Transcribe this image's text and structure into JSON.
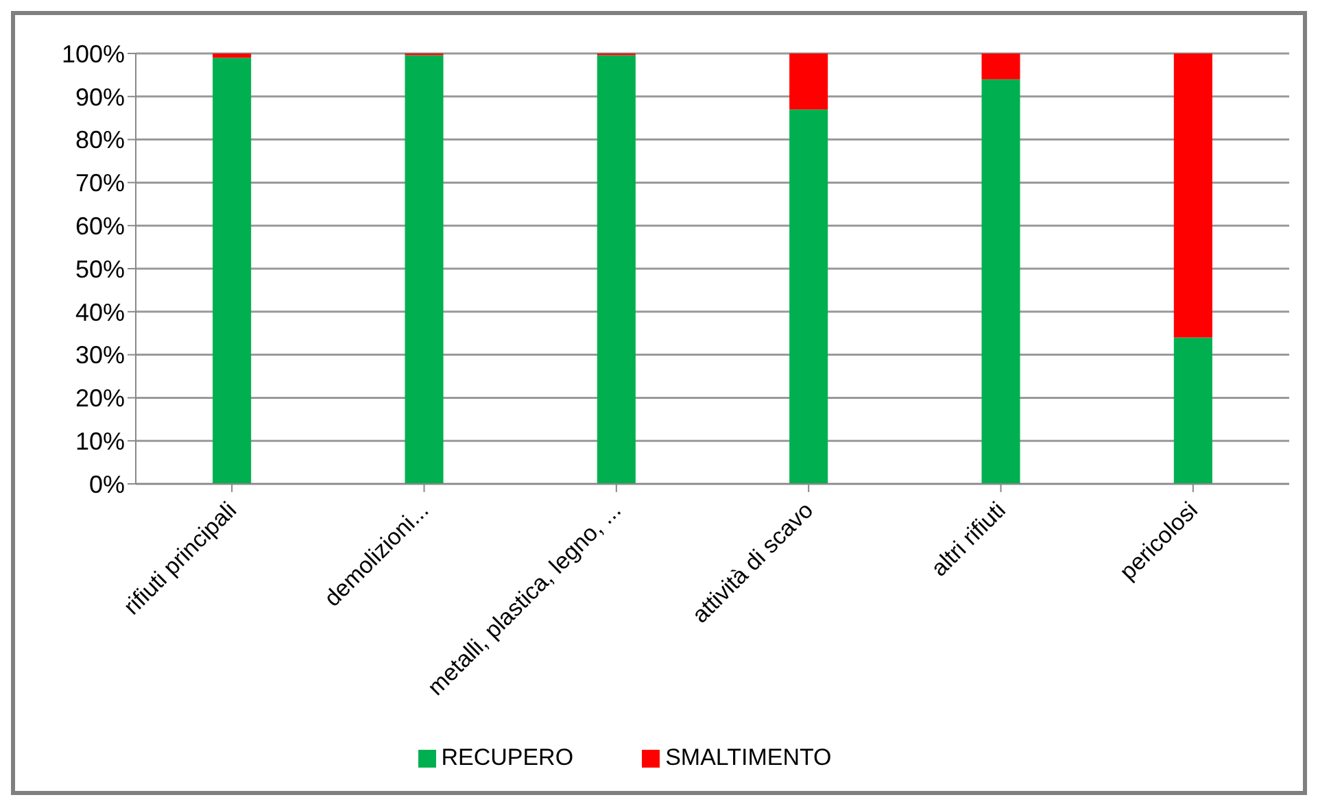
{
  "chart_data": {
    "type": "bar",
    "stacked": true,
    "categories": [
      "rifiuti principali",
      "demolizioni...",
      "metalli, plastica, legno, ...",
      "attività di scavo",
      "altri rifiuti",
      "pericolosi"
    ],
    "series": [
      {
        "name": "RECUPERO",
        "color": "#00b050",
        "values": [
          99,
          99.6,
          99.6,
          87,
          94,
          34
        ]
      },
      {
        "name": "SMALTIMENTO",
        "color": "#ff0000",
        "values": [
          1,
          0.4,
          0.4,
          13,
          6,
          66
        ]
      }
    ],
    "ylim": [
      0,
      100
    ],
    "yticks": [
      {
        "value": 0,
        "label": "0%"
      },
      {
        "value": 10,
        "label": "10%"
      },
      {
        "value": 20,
        "label": "20%"
      },
      {
        "value": 30,
        "label": "30%"
      },
      {
        "value": 40,
        "label": "40%"
      },
      {
        "value": 50,
        "label": "50%"
      },
      {
        "value": 60,
        "label": "60%"
      },
      {
        "value": 70,
        "label": "70%"
      },
      {
        "value": 80,
        "label": "80%"
      },
      {
        "value": 90,
        "label": "90%"
      },
      {
        "value": 100,
        "label": "100%"
      }
    ],
    "grid": "y",
    "legend": "bottom"
  }
}
